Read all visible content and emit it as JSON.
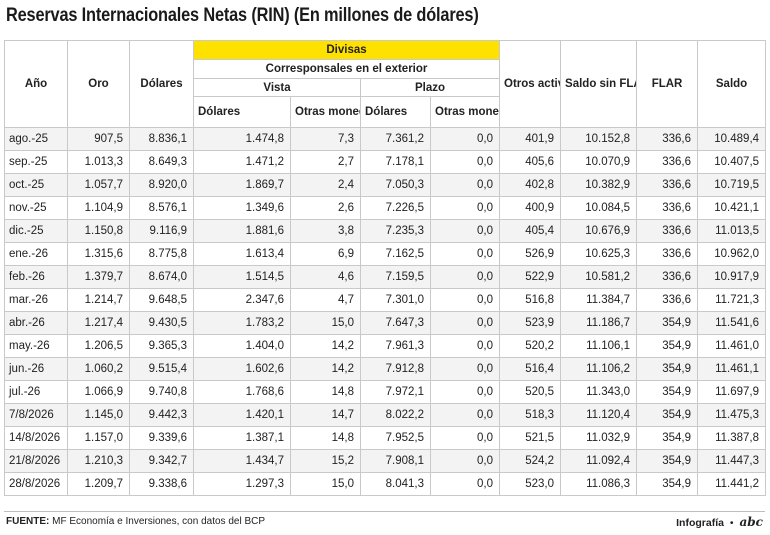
{
  "title": "Reservas Internacionales Netas (RIN) (En millones de dólares)",
  "headers": {
    "anio": "Año",
    "oro": "Oro",
    "dolares": "Dólares",
    "divisas": "Divisas",
    "corresponsales": "Corresponsales en el exterior",
    "vista": "Vista",
    "plazo": "Plazo",
    "vista_dolares": "Dólares",
    "vista_otras": "Otras monedas",
    "plazo_dolares": "Dólares",
    "plazo_otras": "Otras monedas",
    "otros": "Otros activos de reserva",
    "saldo_sin_flar": "Saldo sin FLAR",
    "flar": "FLAR",
    "saldo": "Saldo"
  },
  "rows": [
    [
      "ago.-25",
      "907,5",
      "8.836,1",
      "1.474,8",
      "7,3",
      "7.361,2",
      "0,0",
      "401,9",
      "10.152,8",
      "336,6",
      "10.489,4"
    ],
    [
      "sep.-25",
      "1.013,3",
      "8.649,3",
      "1.471,2",
      "2,7",
      "7.178,1",
      "0,0",
      "405,6",
      "10.070,9",
      "336,6",
      "10.407,5"
    ],
    [
      "oct.-25",
      "1.057,7",
      "8.920,0",
      "1.869,7",
      "2,4",
      "7.050,3",
      "0,0",
      "402,8",
      "10.382,9",
      "336,6",
      "10.719,5"
    ],
    [
      "nov.-25",
      "1.104,9",
      "8.576,1",
      "1.349,6",
      "2,6",
      "7.226,5",
      "0,0",
      "400,9",
      "10.084,5",
      "336,6",
      "10.421,1"
    ],
    [
      "dic.-25",
      "1.150,8",
      "9.116,9",
      "1.881,6",
      "3,8",
      "7.235,3",
      "0,0",
      "405,4",
      "10.676,9",
      "336,6",
      "11.013,5"
    ],
    [
      "ene.-26",
      "1.315,6",
      "8.775,8",
      "1.613,4",
      "6,9",
      "7.162,5",
      "0,0",
      "526,9",
      "10.625,3",
      "336,6",
      "10.962,0"
    ],
    [
      "feb.-26",
      "1.379,7",
      "8.674,0",
      "1.514,5",
      "4,6",
      "7.159,5",
      "0,0",
      "522,9",
      "10.581,2",
      "336,6",
      "10.917,9"
    ],
    [
      "mar.-26",
      "1.214,7",
      "9.648,5",
      "2.347,6",
      "4,7",
      "7.301,0",
      "0,0",
      "516,8",
      "11.384,7",
      "336,6",
      "11.721,3"
    ],
    [
      "abr.-26",
      "1.217,4",
      "9.430,5",
      "1.783,2",
      "15,0",
      "7.647,3",
      "0,0",
      "523,9",
      "11.186,7",
      "354,9",
      "11.541,6"
    ],
    [
      "may.-26",
      "1.206,5",
      "9.365,3",
      "1.404,0",
      "14,2",
      "7.961,3",
      "0,0",
      "520,2",
      "11.106,1",
      "354,9",
      "11.461,0"
    ],
    [
      "jun.-26",
      "1.060,2",
      "9.515,4",
      "1.602,6",
      "14,2",
      "7.912,8",
      "0,0",
      "516,4",
      "11.106,2",
      "354,9",
      "11.461,1"
    ],
    [
      "jul.-26",
      "1.066,9",
      "9.740,8",
      "1.768,6",
      "14,8",
      "7.972,1",
      "0,0",
      "520,5",
      "11.343,0",
      "354,9",
      "11.697,9"
    ],
    [
      "7/8/2026",
      "1.145,0",
      "9.442,3",
      "1.420,1",
      "14,7",
      "8.022,2",
      "0,0",
      "518,3",
      "11.120,4",
      "354,9",
      "11.475,3"
    ],
    [
      "14/8/2026",
      "1.157,0",
      "9.339,6",
      "1.387,1",
      "14,8",
      "7.952,5",
      "0,0",
      "521,5",
      "11.032,9",
      "354,9",
      "11.387,8"
    ],
    [
      "21/8/2026",
      "1.210,3",
      "9.342,7",
      "1.434,7",
      "15,2",
      "7.908,1",
      "0,0",
      "524,2",
      "11.092,4",
      "354,9",
      "11.447,3"
    ],
    [
      "28/8/2026",
      "1.209,7",
      "9.338,6",
      "1.297,3",
      "15,0",
      "8.041,3",
      "0,0",
      "523,0",
      "11.086,3",
      "354,9",
      "11.441,2"
    ]
  ],
  "footer": {
    "fuente_label": "FUENTE:",
    "fuente_text": "MF Economía e Inversiones, con datos del BCP",
    "credit": "Infografía",
    "separator": "•",
    "logo_text": "abc"
  },
  "colors": {
    "divisas_highlight": "#ffe100",
    "stripe": "#f3f3f3",
    "border": "#c9c9c9"
  }
}
